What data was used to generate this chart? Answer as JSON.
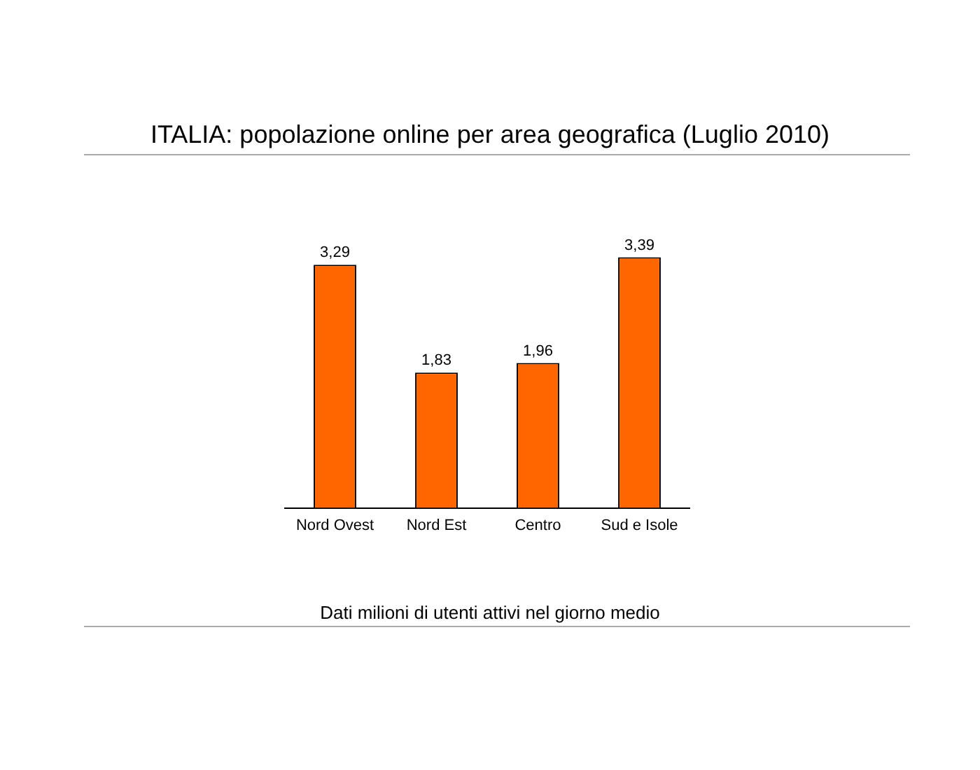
{
  "chart_data": {
    "type": "bar",
    "title": "ITALIA: popolazione online per area geografica (Luglio 2010)",
    "categories": [
      "Nord Ovest",
      "Nord Est",
      "Centro",
      "Sud e Isole"
    ],
    "values": [
      3.29,
      1.83,
      1.96,
      3.39
    ],
    "color": "#ff6600",
    "value_labels": [
      "3,29",
      "1,83",
      "1,96",
      "3,39"
    ],
    "grid": false,
    "legend": false,
    "annotations": [
      "Dati milioni di utenti attivi nel giorno medio"
    ]
  }
}
